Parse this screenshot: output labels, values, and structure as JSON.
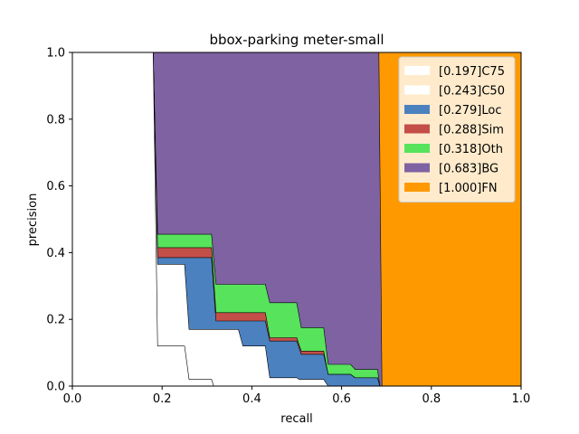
{
  "chart_data": {
    "type": "area",
    "title": "bbox-parking meter-small",
    "xlabel": "recall",
    "ylabel": "precision",
    "xlim": [
      0,
      1
    ],
    "ylim": [
      0,
      1
    ],
    "xticks": [
      "0.0",
      "0.2",
      "0.4",
      "0.6",
      "0.8",
      "1.0"
    ],
    "yticks": [
      "0.0",
      "0.2",
      "0.4",
      "0.6",
      "0.8",
      "1.0"
    ],
    "legend_position": "top-right",
    "grid": false,
    "series": [
      {
        "name": "[0.197]C75",
        "color": "#ffffff",
        "points": [
          [
            0,
            1
          ],
          [
            0.18,
            1
          ],
          [
            0.19,
            0.12
          ],
          [
            0.25,
            0.12
          ],
          [
            0.26,
            0.02
          ],
          [
            0.31,
            0.02
          ],
          [
            0.315,
            0
          ],
          [
            1,
            0
          ]
        ]
      },
      {
        "name": "[0.243]C50",
        "color": "#ffffff",
        "points": [
          [
            0,
            1
          ],
          [
            0.18,
            1
          ],
          [
            0.19,
            0.365
          ],
          [
            0.25,
            0.365
          ],
          [
            0.26,
            0.17
          ],
          [
            0.37,
            0.17
          ],
          [
            0.38,
            0.12
          ],
          [
            0.43,
            0.12
          ],
          [
            0.44,
            0.025
          ],
          [
            0.5,
            0.025
          ],
          [
            0.505,
            0.02
          ],
          [
            0.56,
            0.02
          ],
          [
            0.57,
            0
          ],
          [
            1,
            0
          ]
        ]
      },
      {
        "name": "[0.279]Loc",
        "color": "#4c81bf",
        "points": [
          [
            0,
            1
          ],
          [
            0.18,
            1
          ],
          [
            0.19,
            0.385
          ],
          [
            0.31,
            0.385
          ],
          [
            0.32,
            0.195
          ],
          [
            0.43,
            0.195
          ],
          [
            0.44,
            0.135
          ],
          [
            0.5,
            0.135
          ],
          [
            0.51,
            0.095
          ],
          [
            0.56,
            0.095
          ],
          [
            0.57,
            0.035
          ],
          [
            0.62,
            0.035
          ],
          [
            0.63,
            0.025
          ],
          [
            0.68,
            0.025
          ],
          [
            0.685,
            0
          ],
          [
            1,
            0
          ]
        ]
      },
      {
        "name": "[0.288]Sim",
        "color": "#c44e48",
        "points": [
          [
            0,
            1
          ],
          [
            0.18,
            1
          ],
          [
            0.19,
            0.415
          ],
          [
            0.31,
            0.415
          ],
          [
            0.32,
            0.22
          ],
          [
            0.43,
            0.22
          ],
          [
            0.44,
            0.145
          ],
          [
            0.5,
            0.145
          ],
          [
            0.51,
            0.105
          ],
          [
            0.56,
            0.105
          ],
          [
            0.57,
            0.035
          ],
          [
            0.62,
            0.035
          ],
          [
            0.63,
            0.025
          ],
          [
            0.68,
            0.025
          ],
          [
            0.685,
            0
          ],
          [
            1,
            0
          ]
        ]
      },
      {
        "name": "[0.318]Oth",
        "color": "#57e35c",
        "points": [
          [
            0,
            1
          ],
          [
            0.18,
            1
          ],
          [
            0.19,
            0.455
          ],
          [
            0.31,
            0.455
          ],
          [
            0.32,
            0.305
          ],
          [
            0.43,
            0.305
          ],
          [
            0.44,
            0.25
          ],
          [
            0.5,
            0.25
          ],
          [
            0.51,
            0.175
          ],
          [
            0.56,
            0.175
          ],
          [
            0.57,
            0.065
          ],
          [
            0.62,
            0.065
          ],
          [
            0.63,
            0.05
          ],
          [
            0.68,
            0.05
          ],
          [
            0.685,
            0
          ],
          [
            1,
            0
          ]
        ]
      },
      {
        "name": "[0.683]BG",
        "color": "#7f62a2",
        "points": [
          [
            0,
            1
          ],
          [
            0.683,
            1
          ],
          [
            0.69,
            0
          ],
          [
            1,
            0
          ]
        ]
      },
      {
        "name": "[1.000]FN",
        "color": "#fe9a00",
        "points": [
          [
            0,
            1
          ],
          [
            1,
            1
          ],
          [
            1,
            0
          ]
        ]
      }
    ]
  }
}
